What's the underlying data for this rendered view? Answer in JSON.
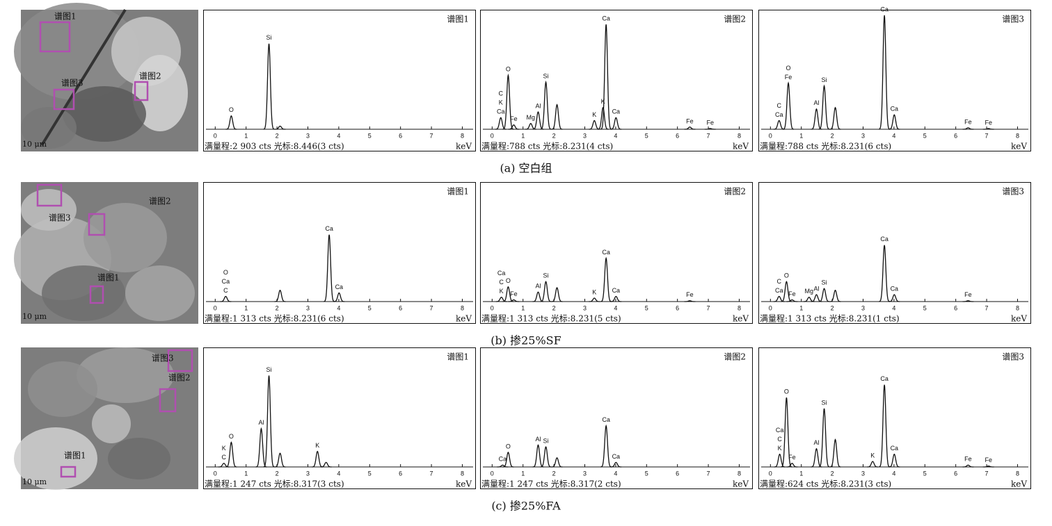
{
  "panels": [
    {
      "caption": "(a) 空白组",
      "image": {
        "scale": "10 μm",
        "regions": [
          "谱图1",
          "谱图2",
          "谱图3"
        ]
      }
    },
    {
      "caption": "(b) 掺25%SF",
      "image": {
        "scale": "10 μm",
        "regions": [
          "谱图1",
          "谱图2",
          "谱图3"
        ]
      }
    },
    {
      "caption": "(c) 掺25%FA",
      "image": {
        "scale": "10 μm",
        "regions": [
          "谱图1",
          "谱图2",
          "谱图3"
        ]
      }
    }
  ],
  "chart_data": [
    {
      "type": "spectrum",
      "title": "谱图1",
      "footer": "满量程:2 903 cts 光标:8.446(3 cts)",
      "xlabel": "keV",
      "xlim": [
        -0.3,
        8.35
      ],
      "xticks": [
        0,
        1,
        2,
        3,
        4,
        5,
        6,
        7,
        8
      ],
      "ylim": [
        0,
        2903
      ],
      "color": "#111111",
      "peaks": [
        {
          "x": 0.52,
          "value": 340,
          "labels": [
            "O"
          ]
        },
        {
          "x": 1.74,
          "value": 2180,
          "labels": [
            "Si"
          ]
        },
        {
          "x": 2.1,
          "value": 80,
          "labels": []
        }
      ]
    },
    {
      "type": "spectrum",
      "title": "谱图2",
      "footer": "满量程:788 cts 光标:8.231(4 cts)",
      "xlabel": "keV",
      "xlim": [
        -0.3,
        8.35
      ],
      "xticks": [
        0,
        1,
        2,
        3,
        4,
        5,
        6,
        7,
        8
      ],
      "ylim": [
        0,
        788
      ],
      "color": "#111111",
      "peaks": [
        {
          "x": 0.28,
          "value": 80,
          "labels": [
            "Ca",
            "K",
            "C"
          ]
        },
        {
          "x": 0.52,
          "value": 373,
          "labels": [
            "O"
          ]
        },
        {
          "x": 0.7,
          "value": 30,
          "labels": [
            "Fe"
          ]
        },
        {
          "x": 1.25,
          "value": 40,
          "labels": [
            "Mg"
          ]
        },
        {
          "x": 1.49,
          "value": 120,
          "labels": [
            "Al"
          ]
        },
        {
          "x": 1.74,
          "value": 326,
          "labels": [
            "Si"
          ]
        },
        {
          "x": 2.1,
          "value": 170,
          "labels": []
        },
        {
          "x": 3.31,
          "value": 60,
          "labels": [
            "K"
          ]
        },
        {
          "x": 3.59,
          "value": 150,
          "labels": [
            "K"
          ]
        },
        {
          "x": 3.69,
          "value": 725,
          "labels": [
            "Ca"
          ]
        },
        {
          "x": 4.01,
          "value": 80,
          "labels": [
            "Ca"
          ]
        },
        {
          "x": 6.4,
          "value": 15,
          "labels": [
            "Fe"
          ]
        },
        {
          "x": 7.06,
          "value": 5,
          "labels": [
            "Fe"
          ]
        }
      ]
    },
    {
      "type": "spectrum",
      "title": "谱图3",
      "footer": "满量程:788 cts 光标:8.231(6 cts)",
      "xlabel": "keV",
      "xlim": [
        -0.3,
        8.35
      ],
      "xticks": [
        0,
        1,
        2,
        3,
        4,
        5,
        6,
        7,
        8
      ],
      "ylim": [
        0,
        788
      ],
      "color": "#111111",
      "peaks": [
        {
          "x": 0.28,
          "value": 60,
          "labels": [
            "Ca",
            "C"
          ]
        },
        {
          "x": 0.58,
          "value": 320,
          "labels": [
            "Fe",
            "O"
          ]
        },
        {
          "x": 1.49,
          "value": 140,
          "labels": [
            "Al"
          ]
        },
        {
          "x": 1.74,
          "value": 300,
          "labels": [
            "Si"
          ]
        },
        {
          "x": 2.1,
          "value": 150,
          "labels": []
        },
        {
          "x": 3.69,
          "value": 788,
          "labels": [
            "Ca"
          ]
        },
        {
          "x": 4.01,
          "value": 100,
          "labels": [
            "Ca"
          ]
        },
        {
          "x": 6.4,
          "value": 10,
          "labels": [
            "Fe"
          ]
        },
        {
          "x": 7.06,
          "value": 5,
          "labels": [
            "Fe"
          ]
        }
      ]
    },
    {
      "type": "spectrum",
      "title": "谱图1",
      "footer": "满量程:1 313 cts 光标:8.231(6 cts)",
      "xlabel": "keV",
      "xlim": [
        -0.3,
        8.35
      ],
      "xticks": [
        0,
        1,
        2,
        3,
        4,
        5,
        6,
        7,
        8
      ],
      "ylim": [
        0,
        1313
      ],
      "color": "#111111",
      "peaks": [
        {
          "x": 0.34,
          "value": 60,
          "labels": [
            "C",
            "Ca",
            "O"
          ]
        },
        {
          "x": 2.1,
          "value": 130,
          "labels": []
        },
        {
          "x": 3.69,
          "value": 770,
          "labels": [
            "Ca"
          ]
        },
        {
          "x": 4.01,
          "value": 100,
          "labels": [
            "Ca"
          ]
        }
      ]
    },
    {
      "type": "spectrum",
      "title": "谱图2",
      "footer": "满量程:1 313 cts 光标:8.231(5 cts)",
      "xlabel": "keV",
      "xlim": [
        -0.3,
        8.35
      ],
      "xticks": [
        0,
        1,
        2,
        3,
        4,
        5,
        6,
        7,
        8
      ],
      "ylim": [
        0,
        1313
      ],
      "color": "#111111",
      "peaks": [
        {
          "x": 0.3,
          "value": 50,
          "labels": [
            "K",
            "C",
            "Ca"
          ]
        },
        {
          "x": 0.52,
          "value": 170,
          "labels": [
            "O"
          ]
        },
        {
          "x": 0.7,
          "value": 20,
          "labels": [
            "Fe"
          ]
        },
        {
          "x": 1.49,
          "value": 110,
          "labels": [
            "Al"
          ]
        },
        {
          "x": 1.74,
          "value": 230,
          "labels": [
            "Si"
          ]
        },
        {
          "x": 2.1,
          "value": 160,
          "labels": []
        },
        {
          "x": 3.31,
          "value": 40,
          "labels": [
            "K"
          ]
        },
        {
          "x": 3.69,
          "value": 500,
          "labels": [
            "Ca"
          ]
        },
        {
          "x": 4.01,
          "value": 60,
          "labels": [
            "Ca"
          ]
        },
        {
          "x": 6.4,
          "value": 10,
          "labels": [
            "Fe"
          ]
        }
      ]
    },
    {
      "type": "spectrum",
      "title": "谱图3",
      "footer": "满量程:1 313 cts 光标:8.231(1 cts)",
      "xlabel": "keV",
      "xlim": [
        -0.3,
        8.35
      ],
      "xticks": [
        0,
        1,
        2,
        3,
        4,
        5,
        6,
        7,
        8
      ],
      "ylim": [
        0,
        1313
      ],
      "color": "#111111",
      "peaks": [
        {
          "x": 0.28,
          "value": 60,
          "labels": [
            "Ca",
            "C"
          ]
        },
        {
          "x": 0.52,
          "value": 230,
          "labels": [
            "O"
          ]
        },
        {
          "x": 0.7,
          "value": 20,
          "labels": [
            "Fe"
          ]
        },
        {
          "x": 1.25,
          "value": 50,
          "labels": [
            "Mg"
          ]
        },
        {
          "x": 1.49,
          "value": 80,
          "labels": [
            "Al"
          ]
        },
        {
          "x": 1.74,
          "value": 150,
          "labels": [
            "Si"
          ]
        },
        {
          "x": 2.1,
          "value": 130,
          "labels": []
        },
        {
          "x": 3.69,
          "value": 650,
          "labels": [
            "Ca"
          ]
        },
        {
          "x": 4.01,
          "value": 80,
          "labels": [
            "Ca"
          ]
        },
        {
          "x": 6.4,
          "value": 10,
          "labels": [
            "Fe"
          ]
        }
      ]
    },
    {
      "type": "spectrum",
      "title": "谱图1",
      "footer": "满量程:1 247 cts 光标:8.317(3 cts)",
      "xlabel": "keV",
      "xlim": [
        -0.3,
        8.35
      ],
      "xticks": [
        0,
        1,
        2,
        3,
        4,
        5,
        6,
        7,
        8
      ],
      "ylim": [
        0,
        1247
      ],
      "color": "#111111",
      "peaks": [
        {
          "x": 0.28,
          "value": 40,
          "labels": [
            "C",
            "K"
          ]
        },
        {
          "x": 0.52,
          "value": 270,
          "labels": [
            "O"
          ]
        },
        {
          "x": 1.49,
          "value": 420,
          "labels": [
            "Al"
          ]
        },
        {
          "x": 1.74,
          "value": 1000,
          "labels": [
            "Si"
          ]
        },
        {
          "x": 2.1,
          "value": 150,
          "labels": []
        },
        {
          "x": 3.31,
          "value": 170,
          "labels": [
            "K"
          ]
        },
        {
          "x": 3.59,
          "value": 50,
          "labels": []
        }
      ]
    },
    {
      "type": "spectrum",
      "title": "谱图2",
      "footer": "满量程:1 247 cts 光标:8.317(2 cts)",
      "xlabel": "keV",
      "xlim": [
        -0.3,
        8.35
      ],
      "xticks": [
        0,
        1,
        2,
        3,
        4,
        5,
        6,
        7,
        8
      ],
      "ylim": [
        0,
        1247
      ],
      "color": "#111111",
      "peaks": [
        {
          "x": 0.34,
          "value": 20,
          "labels": [
            "Ca"
          ]
        },
        {
          "x": 0.52,
          "value": 160,
          "labels": [
            "O"
          ]
        },
        {
          "x": 1.49,
          "value": 240,
          "labels": [
            "Al"
          ]
        },
        {
          "x": 1.74,
          "value": 220,
          "labels": [
            "Si"
          ]
        },
        {
          "x": 2.1,
          "value": 100,
          "labels": []
        },
        {
          "x": 3.69,
          "value": 450,
          "labels": [
            "Ca"
          ]
        },
        {
          "x": 4.01,
          "value": 50,
          "labels": [
            "Ca"
          ]
        }
      ]
    },
    {
      "type": "spectrum",
      "title": "谱图3",
      "footer": "满量程:624 cts 光标:8.231(3 cts)",
      "xlabel": "keV",
      "xlim": [
        -0.3,
        8.35
      ],
      "xticks": [
        0,
        1,
        2,
        3,
        4,
        5,
        6,
        7,
        8
      ],
      "ylim": [
        0,
        624
      ],
      "color": "#111111",
      "peaks": [
        {
          "x": 0.3,
          "value": 70,
          "labels": [
            "K",
            "C",
            "Ca"
          ]
        },
        {
          "x": 0.52,
          "value": 380,
          "labels": [
            "O"
          ]
        },
        {
          "x": 0.7,
          "value": 20,
          "labels": [
            "Fe"
          ]
        },
        {
          "x": 1.49,
          "value": 100,
          "labels": [
            "Al"
          ]
        },
        {
          "x": 1.74,
          "value": 320,
          "labels": [
            "Si"
          ]
        },
        {
          "x": 2.1,
          "value": 150,
          "labels": []
        },
        {
          "x": 3.31,
          "value": 30,
          "labels": [
            "K"
          ]
        },
        {
          "x": 3.69,
          "value": 450,
          "labels": [
            "Ca"
          ]
        },
        {
          "x": 4.01,
          "value": 70,
          "labels": [
            "Ca"
          ]
        },
        {
          "x": 6.4,
          "value": 10,
          "labels": [
            "Fe"
          ]
        },
        {
          "x": 7.06,
          "value": 5,
          "labels": [
            "Fe"
          ]
        }
      ]
    }
  ]
}
